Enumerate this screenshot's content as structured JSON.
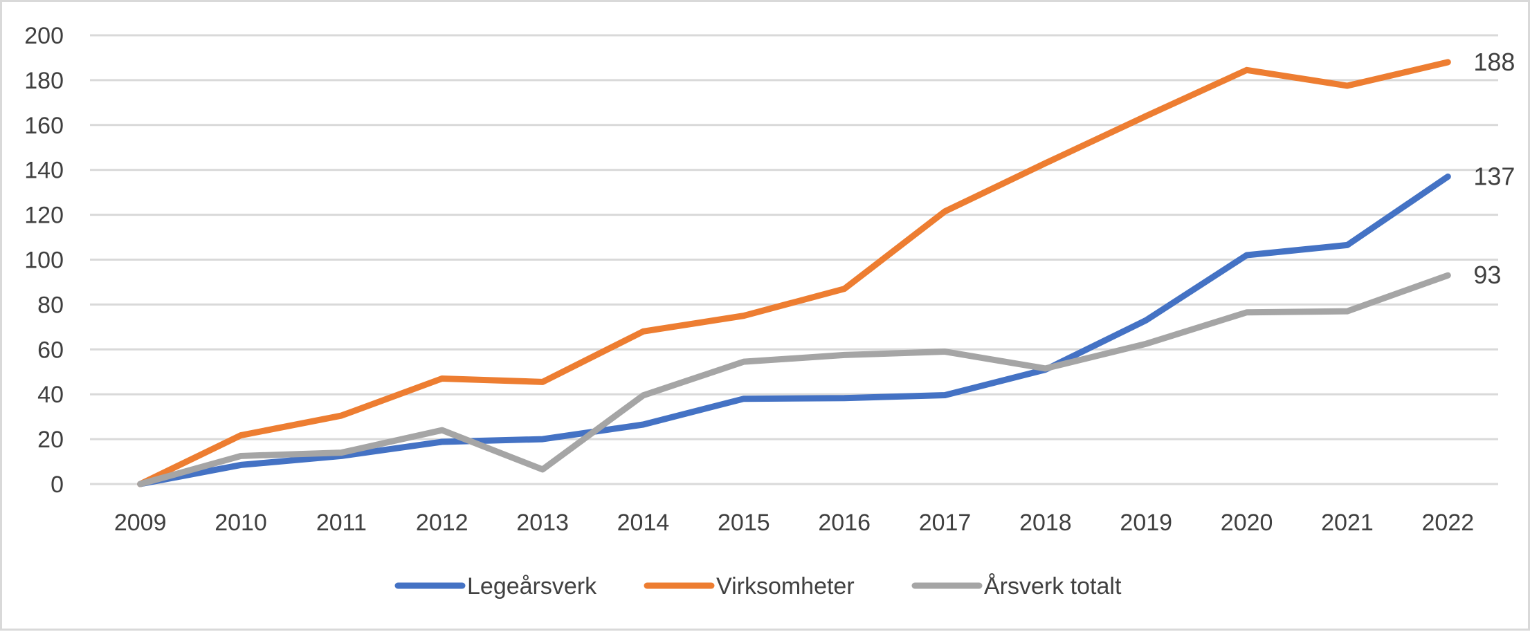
{
  "chart_data": {
    "type": "line",
    "title": "",
    "xlabel": "",
    "ylabel": "",
    "categories": [
      "2009",
      "2010",
      "2011",
      "2012",
      "2013",
      "2014",
      "2015",
      "2016",
      "2017",
      "2018",
      "2019",
      "2020",
      "2021",
      "2022"
    ],
    "ylim": [
      0,
      200
    ],
    "yticks": [
      0,
      20,
      40,
      60,
      80,
      100,
      120,
      140,
      160,
      180,
      200
    ],
    "ytick_labels": [
      "0",
      "20",
      "40",
      "60",
      "80",
      "100",
      "120",
      "140",
      "160",
      "180",
      "200"
    ],
    "grid": "horizontal",
    "legend": "bottom",
    "series": [
      {
        "name": "Legeårsverk",
        "color": "#4472C4",
        "values": [
          0,
          8.5,
          12.5,
          18.8,
          20,
          26.5,
          38,
          38.3,
          39.6,
          51,
          73,
          102,
          106.5,
          137
        ],
        "end_label": "137"
      },
      {
        "name": "Virksomheter",
        "color": "#ED7D31",
        "values": [
          0,
          21.7,
          30.5,
          47,
          45.5,
          68,
          75,
          87,
          121.5,
          143,
          164,
          184.5,
          177.5,
          188
        ],
        "end_label": "188"
      },
      {
        "name": "Årsverk totalt",
        "color": "#A5A5A5",
        "values": [
          0,
          12.5,
          14,
          24,
          6.5,
          39.5,
          54.5,
          57.5,
          59,
          51.5,
          62.5,
          76.5,
          77,
          93
        ],
        "end_label": "93"
      }
    ]
  }
}
